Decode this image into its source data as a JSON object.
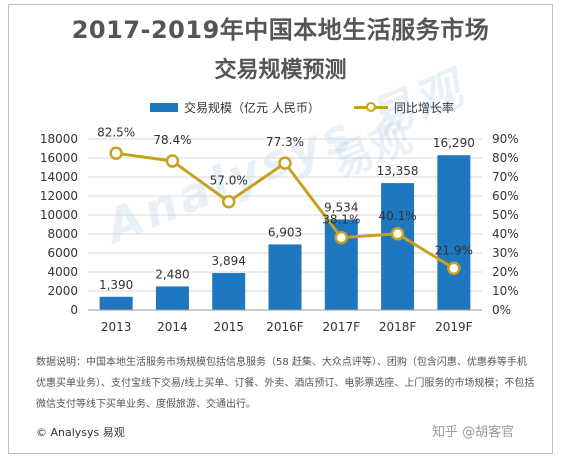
{
  "title_line1": "2017-2019年中国本地生活服务市场",
  "title_line2": "交易规模预测",
  "legend": {
    "bar_label": "交易规模（亿元 人民币）",
    "line_label": "同比增长率"
  },
  "colors": {
    "bar": "#1f77c0",
    "line": "#c8a020",
    "grid": "#d9d9d9"
  },
  "chart_data": {
    "type": "bar",
    "categories": [
      "2013",
      "2014",
      "2015",
      "2016F",
      "2017F",
      "2018F",
      "2019F"
    ],
    "series": [
      {
        "name": "交易规模（亿元 人民币）",
        "type": "bar",
        "axis": "left",
        "values": [
          1390,
          2480,
          3894,
          6903,
          9534,
          13358,
          16290
        ],
        "labels": [
          "1,390",
          "2,480",
          "3,894",
          "6,903",
          "9,534",
          "13,358",
          "16,290"
        ]
      },
      {
        "name": "同比增长率",
        "type": "line",
        "axis": "right",
        "values": [
          82.5,
          78.4,
          57.0,
          77.3,
          38.1,
          40.1,
          21.9
        ],
        "labels": [
          "82.5%",
          "78.4%",
          "57.0%",
          "77.3%",
          "38.1%",
          "40.1%",
          "21.9%"
        ]
      }
    ],
    "y_left": {
      "range": [
        0,
        18000
      ],
      "ticks": [
        "0",
        "2000",
        "4000",
        "6000",
        "8000",
        "10000",
        "12000",
        "14000",
        "16000",
        "18000"
      ]
    },
    "y_right": {
      "range": [
        0,
        90
      ],
      "ticks": [
        "0%",
        "10%",
        "20%",
        "30%",
        "40%",
        "50%",
        "60%",
        "70%",
        "80%",
        "90%"
      ]
    },
    "grid": true,
    "legend_position": "top"
  },
  "note": "数据说明：中国本地生活服务市场规模包括信息服务（58 赶集、大众点评等）、团购（包含闪惠、优惠券等手机优惠买单业务）、支付宝线下交易/线上买单、订餐、外卖、酒店预订、电影票选座、上门服务的市场规模；不包括微信支付等线下买单业务、度假旅游、交通出行。",
  "copyright": "© Analysys 易观",
  "watermark_logo": "Analysys 易观",
  "watermark_cn": "易观",
  "bottom_watermark": "知乎 @胡客官"
}
